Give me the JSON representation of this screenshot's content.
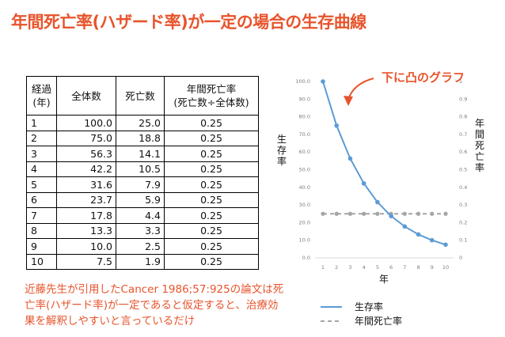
{
  "title": "年間死亡率(ハザード率)が一定の場合の生存曲線",
  "table": {
    "headers": [
      "経過\n(年)",
      "全体数",
      "死亡数",
      "年間死亡率\n(死亡数÷全体数)"
    ],
    "rows": [
      [
        "1",
        "100.0",
        "25.0",
        "0.25"
      ],
      [
        "2",
        "75.0",
        "18.8",
        "0.25"
      ],
      [
        "3",
        "56.3",
        "14.1",
        "0.25"
      ],
      [
        "4",
        "42.2",
        "10.5",
        "0.25"
      ],
      [
        "5",
        "31.6",
        "7.9",
        "0.25"
      ],
      [
        "6",
        "23.7",
        "5.9",
        "0.25"
      ],
      [
        "7",
        "17.8",
        "4.4",
        "0.25"
      ],
      [
        "8",
        "13.3",
        "3.3",
        "0.25"
      ],
      [
        "9",
        "10.0",
        "2.5",
        "0.25"
      ],
      [
        "10",
        "7.5",
        "1.9",
        "0.25"
      ]
    ]
  },
  "note": "近藤先生が引用したCancer 1986;57:925の論文は死亡率(ハザード率)が一定であると仮定すると、治療効果を解釈しやすいと言っているだけ",
  "annotation": "下に凸のグラフ",
  "colors": {
    "title": "#e8542c",
    "survival": "#5b9bd5",
    "hazard": "#a5a5a5",
    "accent": "#e8542c"
  },
  "chart_data": {
    "type": "line",
    "x": [
      1,
      2,
      3,
      4,
      5,
      6,
      7,
      8,
      9,
      10
    ],
    "series": [
      {
        "name": "生存率",
        "axis": "left",
        "style": "solid-markers",
        "values": [
          100.0,
          75.0,
          56.3,
          42.2,
          31.6,
          23.7,
          17.8,
          13.3,
          10.0,
          7.5
        ]
      },
      {
        "name": "年間死亡率",
        "axis": "right",
        "style": "dashed-markers",
        "values": [
          0.25,
          0.25,
          0.25,
          0.25,
          0.25,
          0.25,
          0.25,
          0.25,
          0.25,
          0.25
        ]
      }
    ],
    "xlabel": "年",
    "ylabel_left": "生存率",
    "ylabel_right": "年間死亡率",
    "ylim_left": [
      0,
      100
    ],
    "ylim_right": [
      0,
      1
    ],
    "yticks_left": [
      "0.0",
      "10.0",
      "20.0",
      "30.0",
      "40.0",
      "50.0",
      "60.0",
      "70.0",
      "80.0",
      "90.0",
      "100.0"
    ],
    "yticks_right": [
      "0",
      "0.1",
      "0.2",
      "0.3",
      "0.4",
      "0.5",
      "0.6",
      "0.7",
      "0.8",
      "0.9",
      "1"
    ],
    "xticks": [
      "1",
      "2",
      "3",
      "4",
      "5",
      "6",
      "7",
      "8",
      "9",
      "10"
    ],
    "legend": [
      "生存率",
      "年間死亡率"
    ],
    "legend_position": "bottom",
    "grid": false
  }
}
